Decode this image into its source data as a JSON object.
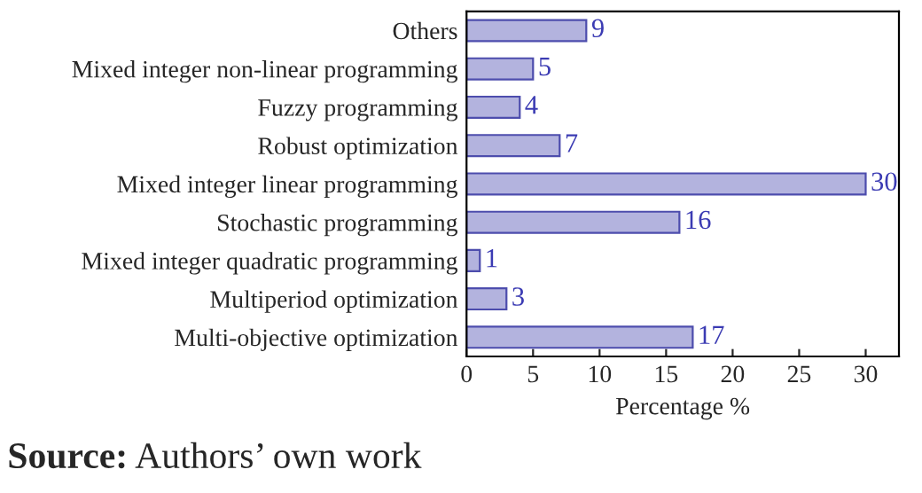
{
  "chart_data": {
    "type": "bar",
    "orientation": "horizontal",
    "xlabel": "Percentage %",
    "categories": [
      "Others",
      "Mixed integer non-linear programming",
      "Fuzzy programming",
      "Robust optimization",
      "Mixed integer linear programming",
      "Stochastic programming",
      "Mixed integer quadratic programming",
      "Multiperiod optimization",
      "Multi-objective optimization"
    ],
    "values": [
      9,
      5,
      4,
      7,
      30,
      16,
      1,
      3,
      17
    ],
    "color": "#b3b3de",
    "data_labels": true,
    "xlim": [
      0,
      32.5
    ],
    "xticks": [
      0,
      5,
      10,
      15,
      20,
      25,
      30
    ],
    "grid": false,
    "legend": false,
    "annotations": [
      "Source: Authors’ own work"
    ]
  }
}
